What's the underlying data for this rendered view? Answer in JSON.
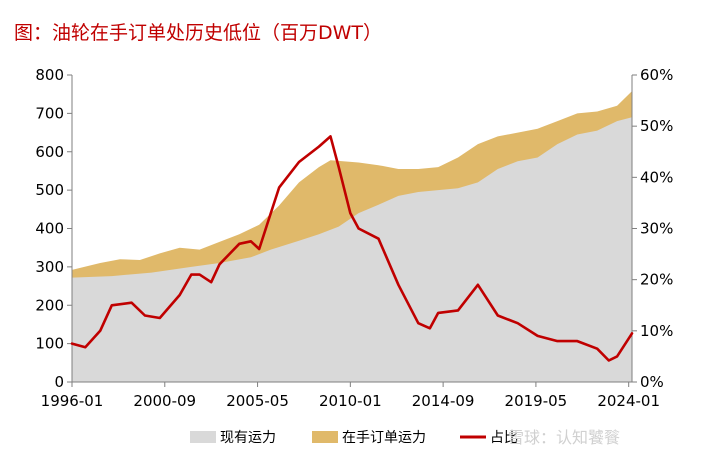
{
  "chart_data": {
    "type": "area",
    "title": "图：油轮在手订单处历史低位（百万DWT）",
    "x_ticks": [
      "1996-01",
      "2000-09",
      "2005-05",
      "2010-01",
      "2014-09",
      "2019-05",
      "2024-01"
    ],
    "x_range": [
      "1996-01",
      "2024-03"
    ],
    "y_left": {
      "ticks": [
        "0",
        "100",
        "200",
        "300",
        "400",
        "500",
        "600",
        "700",
        "800"
      ],
      "range": [
        0,
        800
      ]
    },
    "y_right": {
      "ticks": [
        "0%",
        "10%",
        "20%",
        "30%",
        "40%",
        "50%",
        "60%"
      ],
      "range": [
        0,
        60
      ]
    },
    "legend_position": "bottom",
    "series": [
      {
        "name": "现有运力",
        "axis": "left",
        "color": "#d9d9d9",
        "points": [
          [
            "1996-01",
            272
          ],
          [
            "1998-01",
            276
          ],
          [
            "2000-01",
            285
          ],
          [
            "2002-01",
            300
          ],
          [
            "2003-06",
            310
          ],
          [
            "2005-01",
            325
          ],
          [
            "2006-01",
            345
          ],
          [
            "2007-06",
            368
          ],
          [
            "2008-06",
            385
          ],
          [
            "2009-06",
            405
          ],
          [
            "2010-06",
            440
          ],
          [
            "2011-06",
            462
          ],
          [
            "2012-06",
            485
          ],
          [
            "2013-06",
            495
          ],
          [
            "2014-06",
            500
          ],
          [
            "2015-06",
            505
          ],
          [
            "2016-06",
            520
          ],
          [
            "2017-06",
            555
          ],
          [
            "2018-06",
            575
          ],
          [
            "2019-06",
            585
          ],
          [
            "2020-06",
            620
          ],
          [
            "2021-06",
            645
          ],
          [
            "2022-06",
            655
          ],
          [
            "2023-06",
            680
          ],
          [
            "2024-03",
            690
          ]
        ]
      },
      {
        "name": "在手订单运力",
        "axis": "left",
        "color": "#e0b96a",
        "points": [
          [
            "1996-01",
            292
          ],
          [
            "1997-06",
            310
          ],
          [
            "1998-06",
            320
          ],
          [
            "1999-06",
            318
          ],
          [
            "2000-06",
            335
          ],
          [
            "2001-06",
            350
          ],
          [
            "2002-06",
            345
          ],
          [
            "2003-06",
            365
          ],
          [
            "2004-06",
            385
          ],
          [
            "2005-06",
            410
          ],
          [
            "2006-06",
            460
          ],
          [
            "2007-06",
            520
          ],
          [
            "2008-06",
            560
          ],
          [
            "2009-01",
            578
          ],
          [
            "2010-06",
            572
          ],
          [
            "2011-06",
            565
          ],
          [
            "2012-06",
            555
          ],
          [
            "2013-06",
            555
          ],
          [
            "2014-06",
            560
          ],
          [
            "2015-06",
            585
          ],
          [
            "2016-06",
            620
          ],
          [
            "2017-06",
            640
          ],
          [
            "2018-06",
            650
          ],
          [
            "2019-06",
            660
          ],
          [
            "2020-06",
            680
          ],
          [
            "2021-06",
            700
          ],
          [
            "2022-06",
            705
          ],
          [
            "2023-06",
            720
          ],
          [
            "2024-03",
            758
          ]
        ]
      },
      {
        "name": "占比",
        "axis": "right",
        "color": "#c00000",
        "points": [
          [
            "1996-01",
            7.5
          ],
          [
            "1996-09",
            6.8
          ],
          [
            "1997-06",
            10
          ],
          [
            "1998-01",
            15
          ],
          [
            "1999-01",
            15.5
          ],
          [
            "1999-09",
            13
          ],
          [
            "2000-06",
            12.5
          ],
          [
            "2001-06",
            17
          ],
          [
            "2002-01",
            21
          ],
          [
            "2002-06",
            21
          ],
          [
            "2003-01",
            19.5
          ],
          [
            "2003-06",
            23
          ],
          [
            "2004-06",
            27
          ],
          [
            "2005-01",
            27.5
          ],
          [
            "2005-06",
            26
          ],
          [
            "2006-01",
            33
          ],
          [
            "2006-06",
            38
          ],
          [
            "2007-06",
            43
          ],
          [
            "2008-06",
            46
          ],
          [
            "2009-01",
            48
          ],
          [
            "2009-06",
            42
          ],
          [
            "2010-01",
            33
          ],
          [
            "2010-06",
            30
          ],
          [
            "2011-06",
            28
          ],
          [
            "2012-06",
            19
          ],
          [
            "2013-06",
            11.5
          ],
          [
            "2014-01",
            10.5
          ],
          [
            "2014-06",
            13.5
          ],
          [
            "2015-06",
            14
          ],
          [
            "2016-06",
            19
          ],
          [
            "2017-06",
            13
          ],
          [
            "2018-06",
            11.5
          ],
          [
            "2019-06",
            9
          ],
          [
            "2020-06",
            8
          ],
          [
            "2021-06",
            8
          ],
          [
            "2022-06",
            6.5
          ],
          [
            "2023-01",
            4.2
          ],
          [
            "2023-06",
            5
          ],
          [
            "2024-03",
            9.5
          ]
        ]
      }
    ],
    "watermark": "雪球：认知饕餮"
  }
}
